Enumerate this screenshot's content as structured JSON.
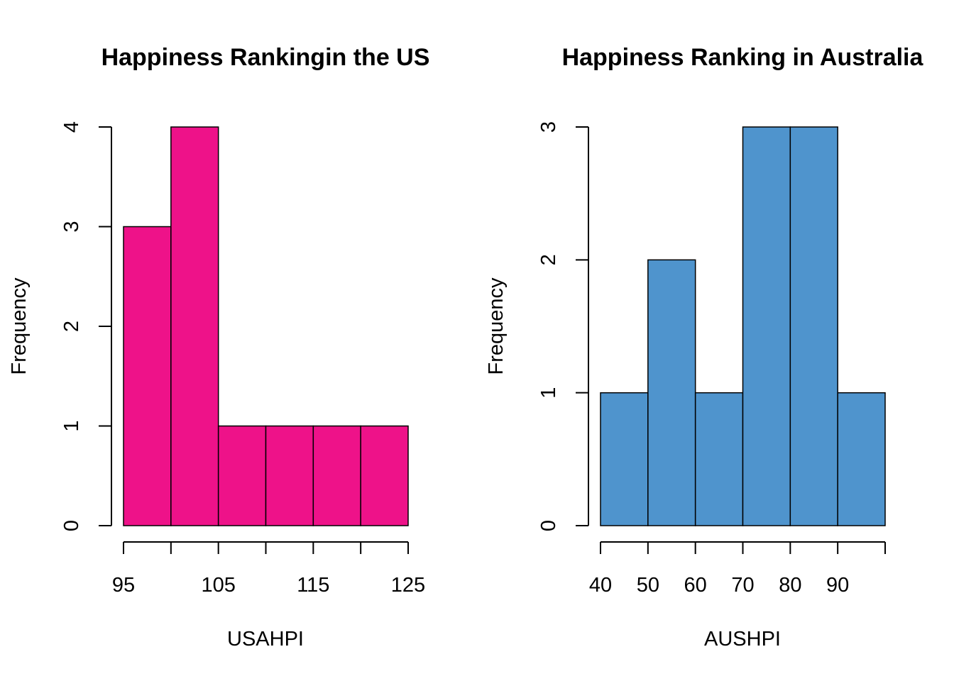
{
  "chart_data": [
    {
      "type": "bar",
      "subtype": "histogram",
      "title": "Happiness Rankingin the US",
      "xlabel": "USAHPI",
      "ylabel": "Frequency",
      "bins": [
        [
          95,
          100
        ],
        [
          100,
          105
        ],
        [
          105,
          110
        ],
        [
          110,
          115
        ],
        [
          115,
          120
        ],
        [
          120,
          125
        ]
      ],
      "values": [
        3,
        4,
        1,
        1,
        1,
        1
      ],
      "xticks": [
        95,
        100,
        105,
        110,
        115,
        120,
        125
      ],
      "xtick_labels": [
        "95",
        "",
        "105",
        "",
        "115",
        "",
        "125"
      ],
      "yticks": [
        0,
        1,
        2,
        3,
        4
      ],
      "ytick_labels": [
        "0",
        "1",
        "2",
        "3",
        "4"
      ],
      "xlim": [
        95,
        125
      ],
      "ylim": [
        0,
        4
      ],
      "color": "#EE1289",
      "grid": false
    },
    {
      "type": "bar",
      "subtype": "histogram",
      "title": "Happiness Ranking in Australia",
      "xlabel": "AUSHPI",
      "ylabel": "Frequency",
      "bins": [
        [
          40,
          50
        ],
        [
          50,
          60
        ],
        [
          60,
          70
        ],
        [
          70,
          80
        ],
        [
          80,
          90
        ],
        [
          90,
          100
        ]
      ],
      "values": [
        1,
        2,
        1,
        3,
        3,
        1
      ],
      "xticks": [
        40,
        50,
        60,
        70,
        80,
        90,
        100
      ],
      "xtick_labels": [
        "40",
        "50",
        "60",
        "70",
        "80",
        "90",
        ""
      ],
      "yticks": [
        0,
        1,
        2,
        3
      ],
      "ytick_labels": [
        "0",
        "1",
        "2",
        "3"
      ],
      "xlim": [
        40,
        100
      ],
      "ylim": [
        0,
        3
      ],
      "color": "#4F94CD",
      "grid": false
    }
  ]
}
